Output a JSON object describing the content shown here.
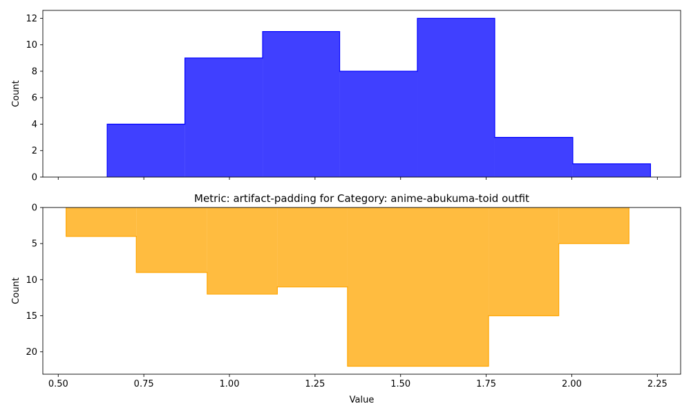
{
  "chart_data": [
    {
      "type": "bar",
      "subtype": "step-histogram",
      "title": "",
      "xlabel": "",
      "ylabel": "Count",
      "xlim": [
        0.455,
        2.318
      ],
      "ylim": [
        0,
        12.6
      ],
      "y_inverted": false,
      "x_tick_labels_shown": false,
      "xticks": [
        0.5,
        0.75,
        1.0,
        1.25,
        1.5,
        1.75,
        2.0,
        2.25
      ],
      "yticks": [
        0,
        2,
        4,
        6,
        8,
        10,
        12
      ],
      "ytick_labels": [
        "0",
        "2",
        "4",
        "6",
        "8",
        "10",
        "12"
      ],
      "color": "#0000ff",
      "fill_alpha": 0.75,
      "edges": [
        0.643,
        0.87,
        1.097,
        1.322,
        1.549,
        1.775,
        2.003,
        2.23
      ],
      "counts": [
        4,
        9,
        11,
        8,
        12,
        3,
        1
      ]
    },
    {
      "type": "bar",
      "subtype": "step-histogram",
      "title": "Metric: artifact-padding for Category: anime-abukuma-toid outfit",
      "xlabel": "Value",
      "ylabel": "Count",
      "xlim": [
        0.455,
        2.318
      ],
      "ylim": [
        0,
        23.1
      ],
      "y_inverted": true,
      "x_tick_labels_shown": true,
      "xticks": [
        0.5,
        0.75,
        1.0,
        1.25,
        1.5,
        1.75,
        2.0,
        2.25
      ],
      "xtick_labels": [
        "0.50",
        "0.75",
        "1.00",
        "1.25",
        "1.50",
        "1.75",
        "2.00",
        "2.25"
      ],
      "yticks": [
        0,
        5,
        10,
        15,
        20
      ],
      "ytick_labels": [
        "0",
        "5",
        "10",
        "15",
        "20"
      ],
      "color": "#ffa500",
      "fill_alpha": 0.75,
      "edges": [
        0.523,
        0.728,
        0.935,
        1.14,
        1.345,
        1.552,
        1.757,
        1.962,
        2.167
      ],
      "counts": [
        4,
        9,
        12,
        11,
        22,
        22,
        15,
        5
      ]
    }
  ]
}
